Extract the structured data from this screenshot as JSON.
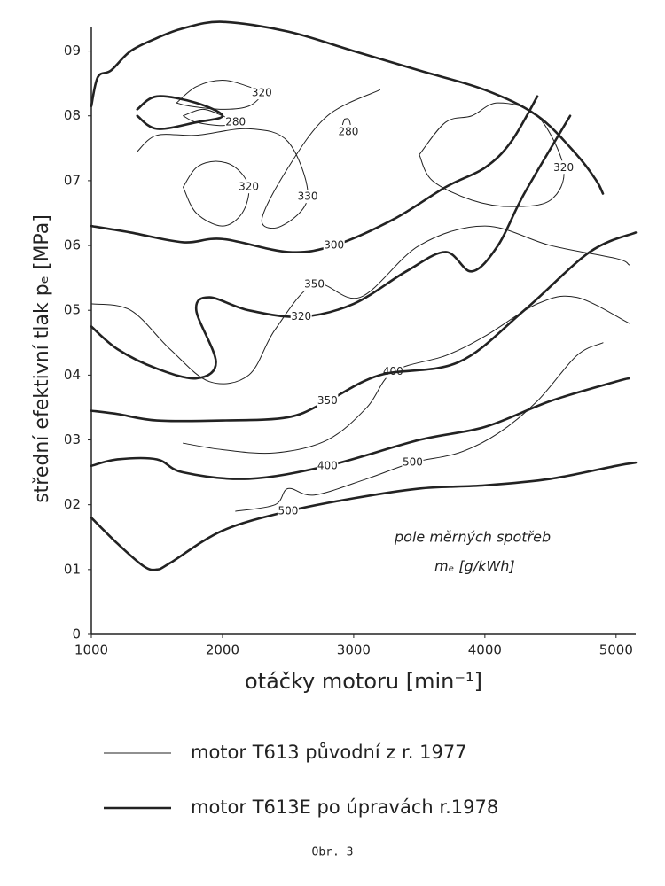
{
  "chart_data": {
    "type": "contour",
    "x_label": "otáčky motoru [min⁻¹]",
    "y_label": "střední efektivní tlak pₑ [MPa]",
    "annotation": "pole měrných spotřeb",
    "annotation_unit": "mₑ [g/kWh]",
    "caption": "Obr. 3",
    "xlim": [
      1000,
      5150
    ],
    "ylim": [
      0,
      0.95
    ],
    "xticks": [
      1000,
      2000,
      3000,
      4000,
      5000
    ],
    "yticks": [
      0,
      {
        "value": 0.1,
        "label": "01"
      },
      {
        "value": 0.2,
        "label": "02"
      },
      {
        "value": 0.3,
        "label": "03"
      },
      {
        "value": 0.4,
        "label": "04"
      },
      {
        "value": 0.5,
        "label": "05"
      },
      {
        "value": 0.6,
        "label": "06"
      },
      {
        "value": 0.7,
        "label": "07"
      },
      {
        "value": 0.8,
        "label": "08"
      },
      {
        "value": 0.9,
        "label": "09"
      }
    ],
    "color": "#222222",
    "series": [
      {
        "name": "motor T613 původní z r. 1977",
        "line_width": 1,
        "contours": [
          {
            "level": 320,
            "x": [
              1650,
              1800,
              2000,
              2200,
              2300,
              2200,
              2000,
              1750,
              1650
            ],
            "y": [
              0.82,
              0.845,
              0.855,
              0.845,
              0.835,
              0.815,
              0.81,
              0.815,
              0.82
            ]
          },
          {
            "level": 280,
            "x": [
              1700,
              1850,
              2000,
              2100,
              2000,
              1800,
              1700
            ],
            "y": [
              0.8,
              0.81,
              0.8,
              0.79,
              0.785,
              0.79,
              0.8
            ]
          },
          {
            "level": 320,
            "x": [
              1700,
              1800,
              1950,
              2100,
              2200,
              2150,
              2000,
              1800,
              1700
            ],
            "y": [
              0.69,
              0.72,
              0.73,
              0.72,
              0.69,
              0.65,
              0.63,
              0.65,
              0.69
            ]
          },
          {
            "level": 330,
            "x": [
              1350,
              1500,
              1800,
              2200,
              2500,
              2650,
              2450,
              2300,
              2500,
              2800,
              3200
            ],
            "y": [
              0.745,
              0.77,
              0.77,
              0.78,
              0.76,
              0.675,
              0.63,
              0.64,
              0.72,
              0.8,
              0.84
            ]
          },
          {
            "level": 280,
            "x": [
              2930,
              2960,
              2975,
              2960,
              2930,
              2915,
              2930
            ],
            "y": [
              0.795,
              0.795,
              0.785,
              0.775,
              0.775,
              0.785,
              0.795
            ]
          },
          {
            "level": 320,
            "x": [
              3500,
              3700,
              3900,
              4100,
              4400,
              4600,
              4500,
              4200,
              3900,
              3600,
              3500
            ],
            "y": [
              0.74,
              0.79,
              0.8,
              0.82,
              0.8,
              0.72,
              0.67,
              0.66,
              0.67,
              0.7,
              0.74
            ]
          },
          {
            "level": 350,
            "x": [
              1000,
              1300,
              1600,
              1900,
              2200,
              2400,
              2700,
              3050,
              3500,
              4000,
              4500,
              5000,
              5100
            ],
            "y": [
              0.51,
              0.5,
              0.44,
              0.39,
              0.4,
              0.47,
              0.54,
              0.52,
              0.6,
              0.63,
              0.6,
              0.58,
              0.57
            ]
          },
          {
            "level": 400,
            "x": [
              1700,
              2000,
              2400,
              2800,
              3100,
              3300,
              3700,
              4000,
              4400,
              4700,
              5100
            ],
            "y": [
              0.295,
              0.285,
              0.28,
              0.3,
              0.35,
              0.405,
              0.43,
              0.46,
              0.51,
              0.52,
              0.48
            ]
          },
          {
            "level": 500,
            "x": [
              2100,
              2400,
              2500,
              2700,
              3100,
              3450,
              3800,
              4100,
              4400,
              4700,
              4900
            ],
            "y": [
              0.19,
              0.2,
              0.225,
              0.215,
              0.24,
              0.265,
              0.28,
              0.31,
              0.36,
              0.43,
              0.45
            ]
          }
        ]
      },
      {
        "name": "motor T613E po úpravách r.1978",
        "line_width": 2.6,
        "contours": [
          {
            "x": [
              1000,
              1050,
              1150,
              1300,
              1500,
              1700,
              2000,
              2500,
              3000,
              3500,
              4000,
              4400,
              4700,
              4850,
              4900
            ],
            "y": [
              0.815,
              0.86,
              0.87,
              0.9,
              0.92,
              0.935,
              0.945,
              0.93,
              0.9,
              0.87,
              0.84,
              0.8,
              0.74,
              0.7,
              0.68
            ]
          },
          {
            "x": [
              1350,
              1500,
              1800,
              2000,
              1800,
              1500,
              1350
            ],
            "y": [
              0.81,
              0.83,
              0.82,
              0.8,
              0.79,
              0.78,
              0.8
            ]
          },
          {
            "level": 300,
            "x": [
              1000,
              1300,
              1700,
              2000,
              2500,
              2850,
              3300,
              3700,
              4000,
              4200,
              4400
            ],
            "y": [
              0.63,
              0.62,
              0.605,
              0.61,
              0.59,
              0.6,
              0.64,
              0.69,
              0.72,
              0.76,
              0.83
            ]
          },
          {
            "level": 320,
            "x": [
              1000,
              1200,
              1500,
              1800,
              1950,
              1800,
              1900,
              2200,
              2600,
              3000,
              3400,
              3700,
              3900,
              4100,
              4300,
              4650
            ],
            "y": [
              0.475,
              0.44,
              0.41,
              0.395,
              0.42,
              0.5,
              0.52,
              0.5,
              0.49,
              0.51,
              0.56,
              0.59,
              0.56,
              0.6,
              0.68,
              0.8
            ]
          },
          {
            "level": 350,
            "x": [
              1000,
              1200,
              1500,
              2000,
              2500,
              2800,
              3200,
              3800,
              4300,
              4800,
              5150
            ],
            "y": [
              0.345,
              0.34,
              0.33,
              0.33,
              0.335,
              0.36,
              0.4,
              0.42,
              0.5,
              0.59,
              0.62
            ]
          },
          {
            "level": 400,
            "x": [
              1000,
              1200,
              1500,
              1700,
              2200,
              2800,
              3500,
              4000,
              4500,
              5000,
              5100
            ],
            "y": [
              0.26,
              0.27,
              0.27,
              0.25,
              0.24,
              0.26,
              0.3,
              0.32,
              0.36,
              0.39,
              0.395
            ]
          },
          {
            "level": 500,
            "x": [
              1000,
              1200,
              1400,
              1500,
              1600,
              2000,
              2500,
              3000,
              3500,
              4000,
              4500,
              5000,
              5150
            ],
            "y": [
              0.18,
              0.14,
              0.105,
              0.1,
              0.11,
              0.16,
              0.19,
              0.21,
              0.225,
              0.23,
              0.24,
              0.26,
              0.265
            ]
          }
        ]
      }
    ]
  }
}
